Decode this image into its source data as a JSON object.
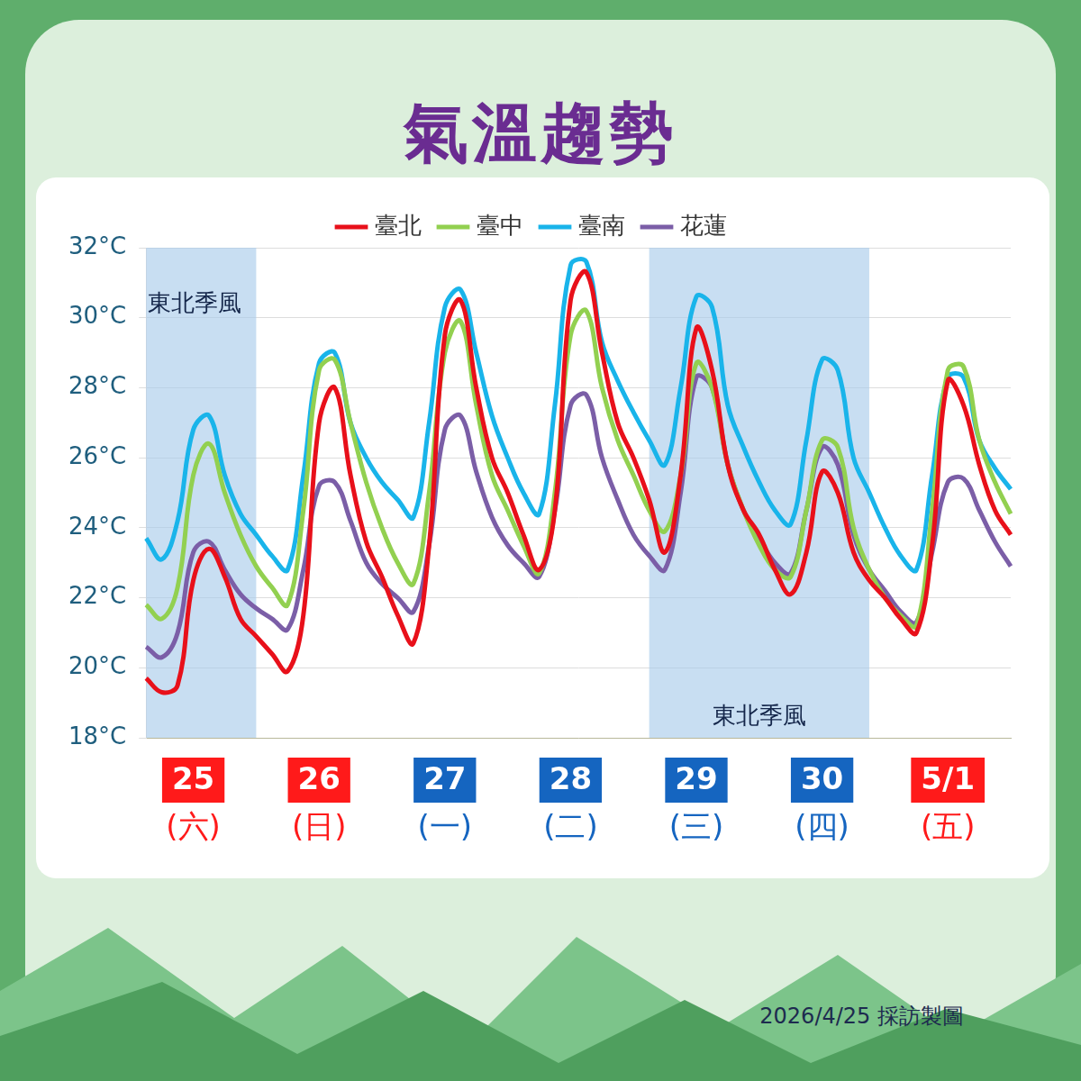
{
  "title": "氣溫趨勢",
  "footer": "2026/4/25 採訪製圖",
  "chart_data": {
    "type": "line",
    "categories": [
      null,
      null,
      null,
      [
        "25",
        "(六)"
      ],
      null,
      null,
      null,
      null,
      null,
      null,
      null,
      [
        "26",
        "(日)"
      ],
      null,
      null,
      null,
      null,
      null,
      null,
      null,
      [
        "27",
        "(一)"
      ],
      null,
      null,
      null,
      null,
      null,
      null,
      null,
      [
        "28",
        "(二)"
      ],
      null,
      null,
      null,
      null,
      null,
      null,
      null,
      [
        "29",
        "(三)"
      ],
      null,
      null,
      null,
      null,
      null,
      null,
      null,
      [
        "30",
        "(四)"
      ],
      null,
      null,
      null,
      null,
      null,
      null,
      null,
      [
        "5/1",
        "(五)"
      ],
      null,
      null,
      null,
      null
    ],
    "series": [
      {
        "name": "臺北",
        "color": "#e8101a",
        "values": [
          19.7,
          19.3,
          19.5,
          22.5,
          23.4,
          22.6,
          21.4,
          20.9,
          20.4,
          19.9,
          21.5,
          27.0,
          28.0,
          25.5,
          23.6,
          22.6,
          21.5,
          20.7,
          23.5,
          29.5,
          30.5,
          28.0,
          26.0,
          25.0,
          23.8,
          22.8,
          24.5,
          30.5,
          31.3,
          29.0,
          27.0,
          26.0,
          24.8,
          23.3,
          25.5,
          29.7,
          28.5,
          25.8,
          24.5,
          23.8,
          22.8,
          22.1,
          23.3,
          25.6,
          25.0,
          23.3,
          22.5,
          22.0,
          21.4,
          21.0,
          23.5,
          28.2,
          27.5,
          25.8,
          24.5,
          23.8
        ]
      },
      {
        "name": "臺中",
        "color": "#92d050",
        "values": [
          21.8,
          21.4,
          22.3,
          25.5,
          26.4,
          25.0,
          23.8,
          22.9,
          22.3,
          21.8,
          24.5,
          28.5,
          28.8,
          27.0,
          25.3,
          24.0,
          23.0,
          22.4,
          25.0,
          29.0,
          29.9,
          27.5,
          25.5,
          24.5,
          23.5,
          22.7,
          25.0,
          29.5,
          30.2,
          28.0,
          26.5,
          25.5,
          24.5,
          23.9,
          25.5,
          28.7,
          28.0,
          25.8,
          24.5,
          23.5,
          22.8,
          22.6,
          24.5,
          26.5,
          26.3,
          24.0,
          22.8,
          22.0,
          21.5,
          21.2,
          24.5,
          28.5,
          28.6,
          26.5,
          25.3,
          24.4
        ]
      },
      {
        "name": "臺南",
        "color": "#19b4ea",
        "values": [
          23.7,
          23.1,
          24.2,
          26.8,
          27.2,
          25.5,
          24.4,
          23.8,
          23.2,
          22.8,
          25.5,
          28.7,
          29.0,
          27.0,
          26.0,
          25.3,
          24.8,
          24.3,
          27.0,
          30.3,
          30.8,
          29.0,
          27.2,
          26.0,
          25.0,
          24.4,
          27.5,
          31.5,
          31.6,
          29.3,
          28.2,
          27.3,
          26.5,
          25.8,
          28.0,
          30.6,
          30.3,
          27.5,
          26.3,
          25.3,
          24.5,
          24.1,
          26.5,
          28.8,
          28.5,
          26.0,
          25.0,
          24.0,
          23.2,
          22.8,
          25.5,
          28.3,
          28.3,
          26.5,
          25.7,
          25.1
        ]
      },
      {
        "name": "花蓮",
        "color": "#7b5ea7",
        "values": [
          20.6,
          20.3,
          21.0,
          23.3,
          23.6,
          22.8,
          22.1,
          21.7,
          21.4,
          21.1,
          22.8,
          25.2,
          25.3,
          24.2,
          23.0,
          22.4,
          22.0,
          21.6,
          23.5,
          26.8,
          27.2,
          25.6,
          24.3,
          23.5,
          23.0,
          22.6,
          24.5,
          27.5,
          27.8,
          26.0,
          24.8,
          23.8,
          23.2,
          22.8,
          25.0,
          28.3,
          28.0,
          25.8,
          24.5,
          23.7,
          23.0,
          22.7,
          24.5,
          26.3,
          25.8,
          23.8,
          22.8,
          22.2,
          21.6,
          21.3,
          23.3,
          25.3,
          25.4,
          24.5,
          23.6,
          22.9
        ]
      }
    ],
    "ylim": [
      18,
      32
    ],
    "yticks": [
      {
        "value": 18,
        "label": "18°C"
      },
      {
        "value": 20,
        "label": "20°C"
      },
      {
        "value": 22,
        "label": "22°C"
      },
      {
        "value": 24,
        "label": "24°C"
      },
      {
        "value": 26,
        "label": "26°C"
      },
      {
        "value": 28,
        "label": "28°C"
      },
      {
        "value": 30,
        "label": "30°C"
      },
      {
        "value": 32,
        "label": "32°C"
      }
    ],
    "grid": true,
    "legend": "top",
    "annotations": [
      {
        "text": "東北季風",
        "start_index": 0,
        "end_index": 7,
        "position": "top"
      },
      {
        "text": "東北季風",
        "start_index": 32,
        "end_index": 46,
        "position": "bottom"
      }
    ]
  }
}
